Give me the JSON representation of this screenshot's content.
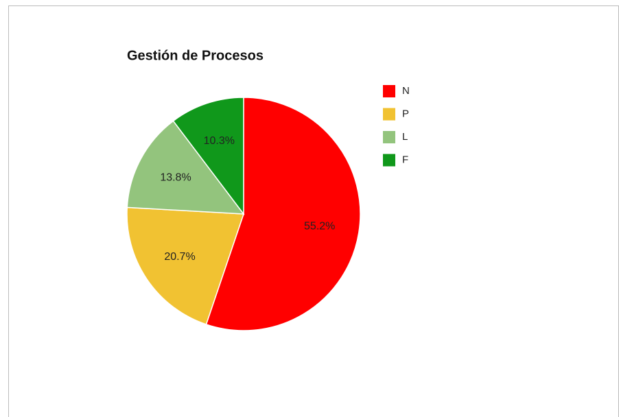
{
  "chart_data": {
    "type": "pie",
    "title": "Gestión de Procesos",
    "categories": [
      "N",
      "P",
      "L",
      "F"
    ],
    "values": [
      55.2,
      20.7,
      13.8,
      10.3
    ],
    "value_labels": [
      "55.2%",
      "20.7%",
      "13.8%",
      "10.3%"
    ],
    "colors": [
      "#ff0000",
      "#f1c232",
      "#93c47d",
      "#10981b"
    ],
    "legend": "right"
  }
}
